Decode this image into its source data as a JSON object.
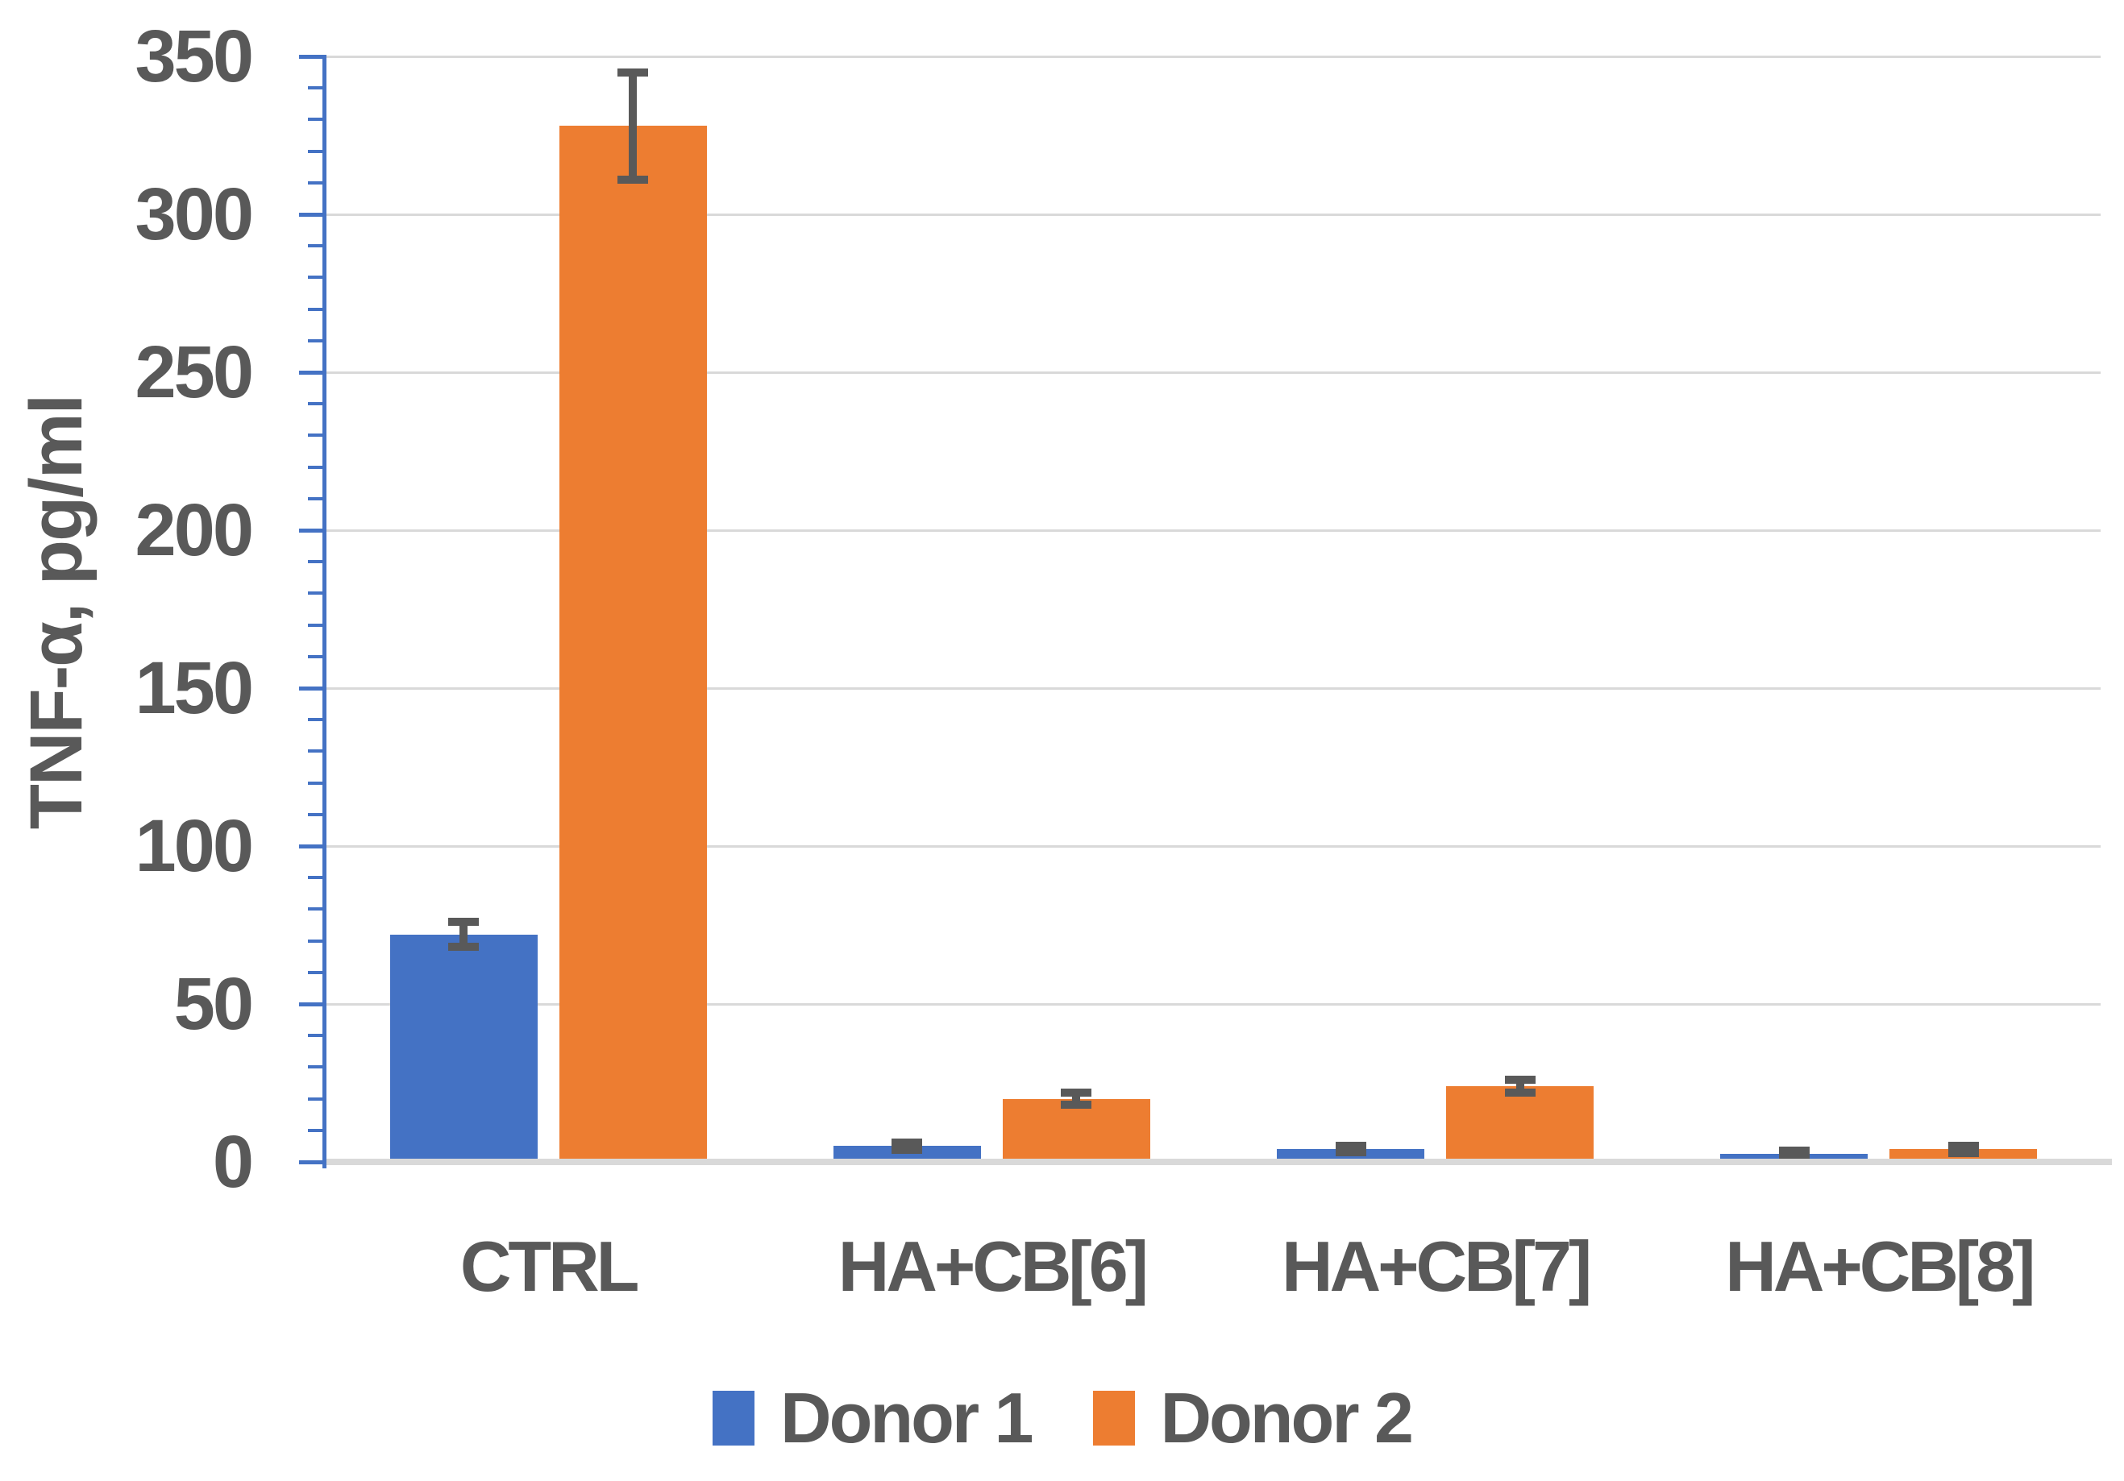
{
  "chart_data": {
    "type": "bar",
    "title": "",
    "ylabel": "TNF-α, pg/ml",
    "xlabel": "",
    "categories": [
      "CTRL",
      "HA+CB[6]",
      "HA+CB[7]",
      "HA+CB[8]"
    ],
    "series": [
      {
        "name": "Donor 1",
        "color": "#4472C4",
        "values": [
          72,
          5,
          4,
          2.5
        ],
        "errors": [
          4,
          1.2,
          1,
          1
        ]
      },
      {
        "name": "Donor 2",
        "color": "#ED7D31",
        "values": [
          328,
          20,
          24,
          4
        ],
        "errors": [
          17,
          2,
          2,
          1.2
        ]
      }
    ],
    "ylim": [
      0,
      350
    ],
    "yticks": [
      0,
      50,
      100,
      150,
      200,
      250,
      300,
      350
    ],
    "ytick_labels": [
      "0",
      "50",
      "100",
      "150",
      "200",
      "250",
      "300",
      "350"
    ],
    "minor_tick_step": 10,
    "grid": "horizontal",
    "legend_position": "bottom",
    "error_bars": true
  },
  "colors": {
    "series1": "#4472C4",
    "series2": "#ED7D31",
    "axis_line": "#4472C4",
    "gridline": "#D9D9D9",
    "text": "#595959",
    "error_bar": "#595959",
    "background": "#FFFFFF"
  },
  "legend": {
    "items": [
      {
        "label": "Donor 1",
        "color": "#4472C4"
      },
      {
        "label": "Donor 2",
        "color": "#ED7D31"
      }
    ]
  }
}
